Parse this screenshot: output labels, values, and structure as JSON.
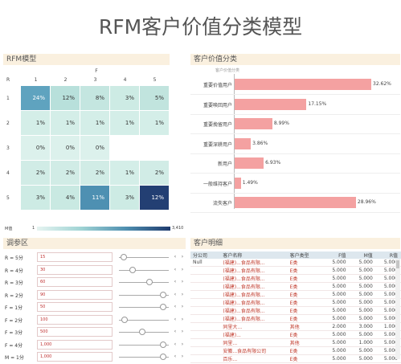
{
  "title": "RFM客户价值分类模型",
  "sections": {
    "rfm": "RFM模型",
    "value": "客户价值分类",
    "adjust": "调参区",
    "detail": "客户明细"
  },
  "heatmap": {
    "col_axis": "F",
    "row_axis": "R",
    "cols": [
      "1",
      "2",
      "3",
      "4",
      "5"
    ],
    "rows": [
      "1",
      "2",
      "3",
      "4",
      "5"
    ],
    "cells": [
      [
        "24%",
        "12%",
        "8%",
        "3%",
        "5%"
      ],
      [
        "1%",
        "1%",
        "1%",
        "1%",
        "1%"
      ],
      [
        "0%",
        "0%",
        "0%",
        "",
        ""
      ],
      [
        "2%",
        "2%",
        "2%",
        "1%",
        "2%"
      ],
      [
        "3%",
        "4%",
        "11%",
        "3%",
        "12%"
      ]
    ],
    "legend_label": "M值",
    "legend_min": "1",
    "legend_max": "3,410"
  },
  "chart_data": {
    "type": "bar",
    "subtitle": "客户价值分类",
    "categories": [
      "重要价值用户",
      "重要唤回用户",
      "重要挽留用户",
      "重要深耕用户",
      "新用户",
      "一般维持客户",
      "流失客户"
    ],
    "values": [
      32.62,
      17.15,
      8.99,
      3.86,
      6.93,
      1.49,
      28.96
    ],
    "labels": [
      "32.62%",
      "17.15%",
      "8.99%",
      "3.86%",
      "6.93%",
      "1.49%",
      "28.96%"
    ],
    "color": "#f4a1a1"
  },
  "params": [
    {
      "label": "R = 5分",
      "value": "15",
      "level": 0.1
    },
    {
      "label": "R = 4分",
      "value": "30",
      "level": 0.3
    },
    {
      "label": "R = 3分",
      "value": "60",
      "level": 0.65
    },
    {
      "label": "R = 2分",
      "value": "90",
      "level": 0.95
    },
    {
      "label": "F = 1分",
      "value": "50",
      "level": 0.95
    },
    {
      "label": "F = 2分",
      "value": "100",
      "level": 0.12
    },
    {
      "label": "F = 3分",
      "value": "500",
      "level": 0.5
    },
    {
      "label": "F = 4分",
      "value": "1,000",
      "level": 0.95
    },
    {
      "label": "M = 1分",
      "value": "1,000",
      "level": 0.95
    }
  ],
  "table": {
    "headers": [
      "分公司",
      "客户名称",
      "客户类型",
      "F值",
      "M值",
      "R值"
    ],
    "rows": [
      [
        "Null",
        "(福建)...食品有限...",
        "E类",
        "5.000",
        "5.000",
        "5.000"
      ],
      [
        "",
        "(福建)...食品有限...",
        "E类",
        "5.000",
        "5.000",
        "5.000"
      ],
      [
        "",
        "(福建)...食品有限...",
        "E类",
        "5.000",
        "5.000",
        "5.000"
      ],
      [
        "",
        "(福建)...食品有限...",
        "E类",
        "5.000",
        "5.000",
        "5.000"
      ],
      [
        "",
        "(福建)...食品有限...",
        "E类",
        "5.000",
        "5.000",
        "5.000"
      ],
      [
        "",
        "(福建)...食品有限...",
        "E类",
        "5.000",
        "5.000",
        "5.000"
      ],
      [
        "",
        "(福建)...食品有限...",
        "E类",
        "5.000",
        "5.000",
        "5.000"
      ],
      [
        "",
        "(福建)...食品有限...",
        "E类",
        "5.000",
        "5.000",
        "5.000"
      ],
      [
        "",
        "同里大...",
        "其他",
        "2.000",
        "3.000",
        "1.000"
      ],
      [
        "",
        "(福建)...",
        "E类",
        "5.000",
        "5.000",
        "5.000"
      ],
      [
        "",
        "同里...",
        "其他",
        "5.000",
        "1.000",
        "5.000"
      ],
      [
        "",
        "安徽...食品有限公司",
        "E类",
        "5.000",
        "5.000",
        "5.000"
      ],
      [
        "",
        "百乐...",
        "E类",
        "5.000",
        "5.000",
        "5.000"
      ]
    ]
  }
}
